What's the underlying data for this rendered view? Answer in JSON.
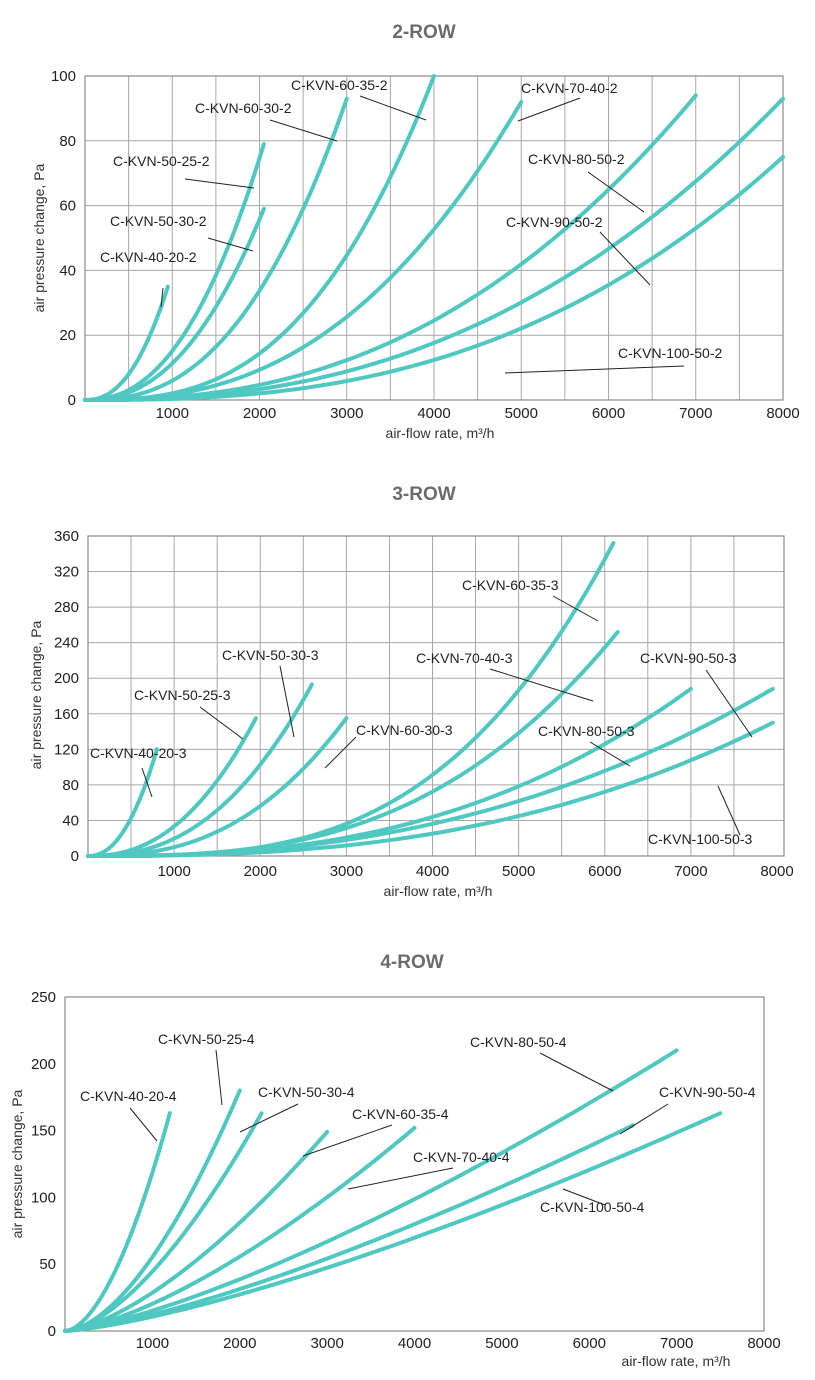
{
  "colors": {
    "curve": "#4ec8c1",
    "grid": "#a7a7a7",
    "title": "#6b6b6b"
  },
  "chart_data": [
    {
      "type": "line",
      "title": "2-ROW",
      "xlabel": "air-flow rate, m³/h",
      "ylabel": "air pressure change, Pa",
      "xlim": [
        0,
        8000
      ],
      "ylim": [
        0,
        100
      ],
      "xticks": [
        1000,
        2000,
        3000,
        4000,
        5000,
        6000,
        7000,
        8000
      ],
      "yticks": [
        0,
        20,
        40,
        60,
        80,
        100
      ],
      "grid": true,
      "series": [
        {
          "name": "C-KVN-40-20-2",
          "x": [
            0,
            950
          ],
          "y": [
            0,
            35
          ]
        },
        {
          "name": "C-KVN-50-25-2",
          "x": [
            0,
            2050
          ],
          "y": [
            0,
            79
          ]
        },
        {
          "name": "C-KVN-50-30-2",
          "x": [
            0,
            2050
          ],
          "y": [
            0,
            59
          ]
        },
        {
          "name": "C-KVN-60-30-2",
          "x": [
            0,
            3000
          ],
          "y": [
            0,
            93
          ]
        },
        {
          "name": "C-KVN-60-35-2",
          "x": [
            0,
            4000
          ],
          "y": [
            0,
            100
          ]
        },
        {
          "name": "C-KVN-70-40-2",
          "x": [
            0,
            5000
          ],
          "y": [
            0,
            92
          ]
        },
        {
          "name": "C-KVN-80-50-2",
          "x": [
            0,
            7000
          ],
          "y": [
            0,
            94
          ]
        },
        {
          "name": "C-KVN-90-50-2",
          "x": [
            0,
            8000
          ],
          "y": [
            0,
            93
          ]
        },
        {
          "name": "C-KVN-100-50-2",
          "x": [
            0,
            8000
          ],
          "y": [
            0,
            75
          ]
        }
      ]
    },
    {
      "type": "line",
      "title": "3-ROW",
      "xlabel": "air-flow rate, m³/h",
      "ylabel": "air pressure change, Pa",
      "xlim": [
        0,
        8000
      ],
      "ylim": [
        0,
        360
      ],
      "xticks": [
        1000,
        2000,
        3000,
        4000,
        5000,
        6000,
        7000,
        8000
      ],
      "yticks": [
        0,
        40,
        80,
        120,
        160,
        200,
        240,
        280,
        320,
        360
      ],
      "grid": true,
      "series": [
        {
          "name": "C-KVN-40-20-3",
          "x": [
            0,
            800
          ],
          "y": [
            0,
            120
          ]
        },
        {
          "name": "C-KVN-50-25-3",
          "x": [
            0,
            1950
          ],
          "y": [
            0,
            155
          ]
        },
        {
          "name": "C-KVN-50-30-3",
          "x": [
            0,
            2600
          ],
          "y": [
            0,
            193
          ]
        },
        {
          "name": "C-KVN-60-30-3",
          "x": [
            0,
            3000
          ],
          "y": [
            0,
            155
          ]
        },
        {
          "name": "C-KVN-60-35-3",
          "x": [
            0,
            6100
          ],
          "y": [
            0,
            352
          ]
        },
        {
          "name": "C-KVN-70-40-3",
          "x": [
            0,
            6150
          ],
          "y": [
            0,
            252
          ]
        },
        {
          "name": "C-KVN-80-50-3",
          "x": [
            0,
            7000
          ],
          "y": [
            0,
            188
          ]
        },
        {
          "name": "C-KVN-90-50-3",
          "x": [
            0,
            7950
          ],
          "y": [
            0,
            188
          ]
        },
        {
          "name": "C-KVN-100-50-3",
          "x": [
            0,
            7950
          ],
          "y": [
            0,
            150
          ]
        }
      ]
    },
    {
      "type": "line",
      "title": "4-ROW",
      "xlabel": "air-flow rate, m³/h",
      "ylabel": "air pressure change, Pa",
      "xlim": [
        0,
        8000
      ],
      "ylim": [
        0,
        250
      ],
      "xticks": [
        1000,
        2000,
        3000,
        4000,
        5000,
        6000,
        7000,
        8000
      ],
      "yticks": [
        0,
        50,
        100,
        150,
        200,
        250
      ],
      "grid": false,
      "series": [
        {
          "name": "C-KVN-40-20-4",
          "x": [
            0,
            1200
          ],
          "y": [
            0,
            163
          ]
        },
        {
          "name": "C-KVN-50-25-4",
          "x": [
            0,
            2000
          ],
          "y": [
            0,
            180
          ]
        },
        {
          "name": "C-KVN-50-30-4",
          "x": [
            0,
            2250
          ],
          "y": [
            0,
            163
          ]
        },
        {
          "name": "C-KVN-60-35-4",
          "x": [
            0,
            3000
          ],
          "y": [
            0,
            149
          ]
        },
        {
          "name": "C-KVN-70-40-4",
          "x": [
            0,
            4000
          ],
          "y": [
            0,
            152
          ]
        },
        {
          "name": "C-KVN-80-50-4",
          "x": [
            0,
            7000
          ],
          "y": [
            0,
            210
          ]
        },
        {
          "name": "C-KVN-90-50-4",
          "x": [
            0,
            6500
          ],
          "y": [
            0,
            154
          ]
        },
        {
          "name": "C-KVN-100-50-4",
          "x": [
            0,
            7500
          ],
          "y": [
            0,
            163
          ]
        }
      ]
    }
  ]
}
